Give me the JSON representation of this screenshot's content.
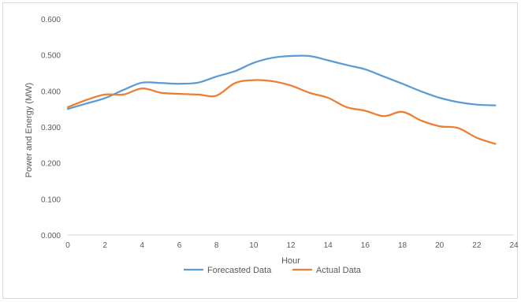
{
  "chart_data": {
    "type": "line",
    "title": "",
    "xlabel": "Hour",
    "ylabel": "Power and Energy (MW)",
    "xlim": [
      0,
      24
    ],
    "ylim": [
      0,
      0.6
    ],
    "x_ticks": [
      "0",
      "2",
      "4",
      "6",
      "8",
      "10",
      "12",
      "14",
      "16",
      "18",
      "20",
      "22",
      "24"
    ],
    "y_ticks": [
      "0.000",
      "0.100",
      "0.200",
      "0.300",
      "0.400",
      "0.500",
      "0.600"
    ],
    "grid": "none",
    "legend_position": "bottom",
    "x": [
      0,
      1,
      2,
      3,
      4,
      5,
      6,
      7,
      8,
      9,
      10,
      11,
      12,
      13,
      14,
      15,
      16,
      17,
      18,
      19,
      20,
      21,
      22,
      23
    ],
    "series": [
      {
        "name": "Forecasted Data",
        "color": "#5b9bd5",
        "values": [
          0.35,
          0.365,
          0.38,
          0.403,
          0.423,
          0.422,
          0.42,
          0.423,
          0.44,
          0.455,
          0.478,
          0.492,
          0.497,
          0.497,
          0.485,
          0.472,
          0.46,
          0.44,
          0.42,
          0.399,
          0.381,
          0.369,
          0.362,
          0.36
        ]
      },
      {
        "name": "Actual Data",
        "color": "#ed7d31",
        "values": [
          0.355,
          0.375,
          0.39,
          0.39,
          0.407,
          0.395,
          0.392,
          0.39,
          0.387,
          0.422,
          0.43,
          0.427,
          0.415,
          0.395,
          0.381,
          0.355,
          0.345,
          0.33,
          0.342,
          0.318,
          0.302,
          0.297,
          0.27,
          0.253
        ]
      }
    ]
  }
}
